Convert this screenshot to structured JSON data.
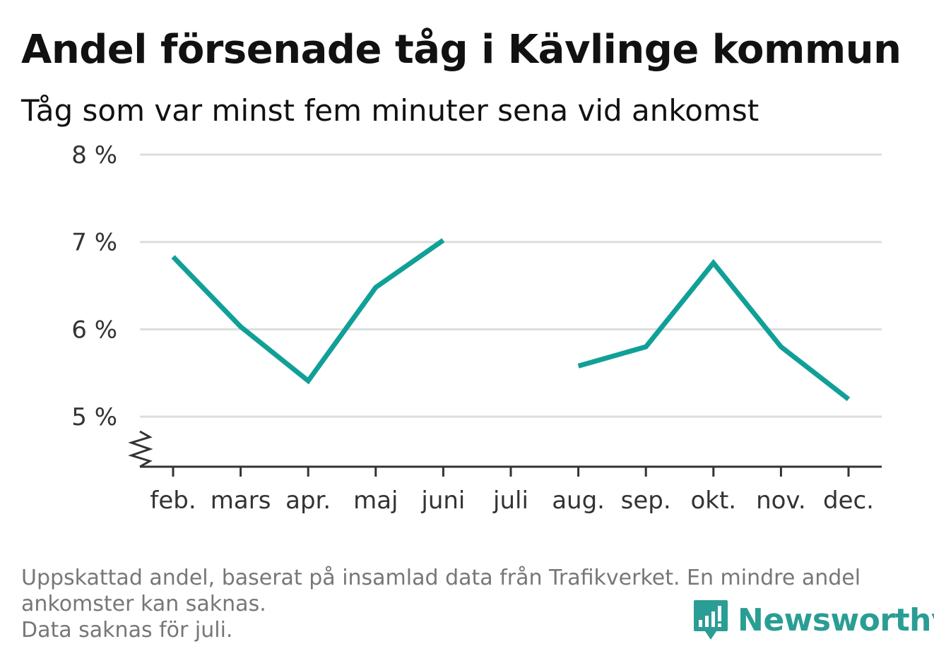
{
  "title": "Andel försenade tåg i Kävlinge kommun",
  "subtitle": "Tåg som var minst fem minuter sena vid ankomst",
  "footnote": [
    "Uppskattad andel, baserat på insamlad data från Trafikverket. En mindre andel",
    "ankomster kan saknas.",
    "Data saknas för juli."
  ],
  "logo": {
    "name": "Newsworthy",
    "icon": "newsworthy-bar-chart-icon",
    "color": "#2a9d94"
  },
  "colors": {
    "line": "#11a097",
    "grid": "#dddddd",
    "axis": "#333333"
  },
  "chart_data": {
    "type": "line",
    "categories": [
      "feb.",
      "mars",
      "apr.",
      "maj",
      "juni",
      "juli",
      "aug.",
      "sep.",
      "okt.",
      "nov.",
      "dec."
    ],
    "series": [
      {
        "values": [
          6.83,
          6.03,
          5.41,
          6.48,
          7.02,
          null,
          5.58,
          5.8,
          6.76,
          5.8,
          5.2
        ]
      }
    ],
    "yticks": [
      5,
      6,
      7,
      8
    ],
    "ytick_labels": [
      "5 %",
      "6 %",
      "7 %",
      "8 %"
    ],
    "ylim": [
      4.45,
      8
    ],
    "broken_axis": true,
    "grid": true,
    "xlabel": "",
    "ylabel": ""
  }
}
